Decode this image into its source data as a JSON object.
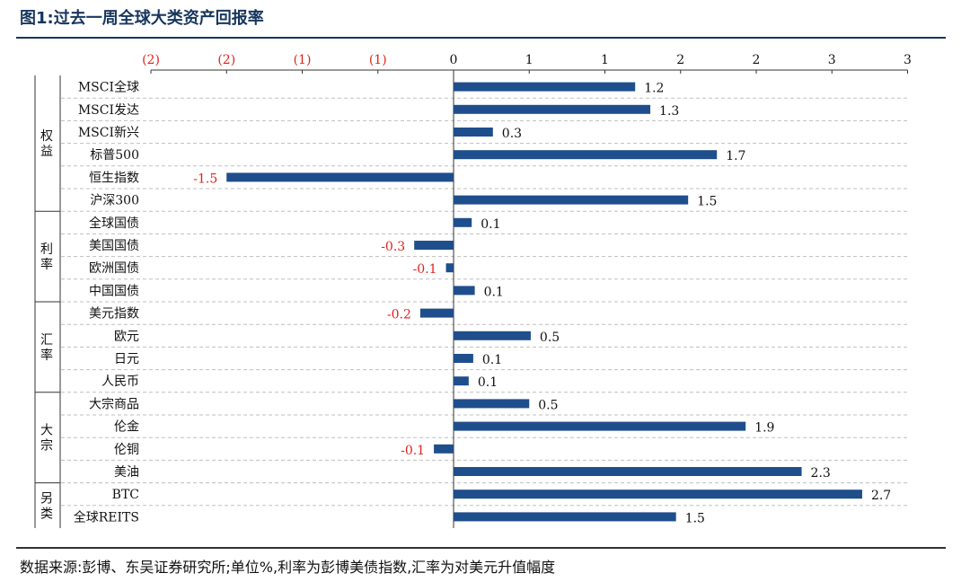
{
  "figure": {
    "title": "图1:过去一周全球大类资产回报率",
    "source": "数据来源:彭博、东吴证券研究所;单位%,利率为彭博美债指数,汇率为对美元升值幅度"
  },
  "colors": {
    "bar": "#1f4e8c",
    "negative_label": "#e0231b",
    "positive_label": "#111111",
    "axis": "#333333",
    "grid": "#bfbfbf"
  },
  "chart_data": {
    "type": "bar",
    "orientation": "horizontal",
    "x_ticks": [
      "(2)",
      "(2)",
      "(1)",
      "(1)",
      "0",
      "1",
      "1",
      "2",
      "2",
      "3",
      "3"
    ],
    "x_tick_values": [
      -2,
      -1.5,
      -1,
      -0.5,
      0,
      0.5,
      1,
      1.5,
      2,
      2.5,
      3
    ],
    "xlim": [
      -2,
      3
    ],
    "grid": true,
    "groups": [
      {
        "name": "权益",
        "start": 0,
        "end": 6
      },
      {
        "name": "利率",
        "start": 6,
        "end": 10
      },
      {
        "name": "汇率",
        "start": 10,
        "end": 14
      },
      {
        "name": "大宗",
        "start": 14,
        "end": 18
      },
      {
        "name": "另类",
        "start": 18,
        "end": 20
      }
    ],
    "categories": [
      "MSCI全球",
      "MSCI发达",
      "MSCI新兴",
      "标普500",
      "恒生指数",
      "沪深300",
      "全球国债",
      "美国国债",
      "欧洲国债",
      "中国国债",
      "美元指数",
      "欧元",
      "日元",
      "人民币",
      "大宗商品",
      "伦金",
      "伦铜",
      "美油",
      "BTC",
      "全球REITS"
    ],
    "values": [
      1.2,
      1.3,
      0.26,
      1.74,
      -1.5,
      1.55,
      0.12,
      -0.26,
      -0.05,
      0.14,
      -0.22,
      0.51,
      0.13,
      0.1,
      0.5,
      1.93,
      -0.13,
      2.3,
      2.7,
      1.47
    ],
    "labels": [
      "1.2",
      "1.3",
      "0.3",
      "1.7",
      "-1.5",
      "1.5",
      "0.1",
      "-0.3",
      "-0.1",
      "0.1",
      "-0.2",
      "0.5",
      "0.1",
      "0.1",
      "0.5",
      "1.9",
      "-0.1",
      "2.3",
      "2.7",
      "1.5"
    ]
  }
}
